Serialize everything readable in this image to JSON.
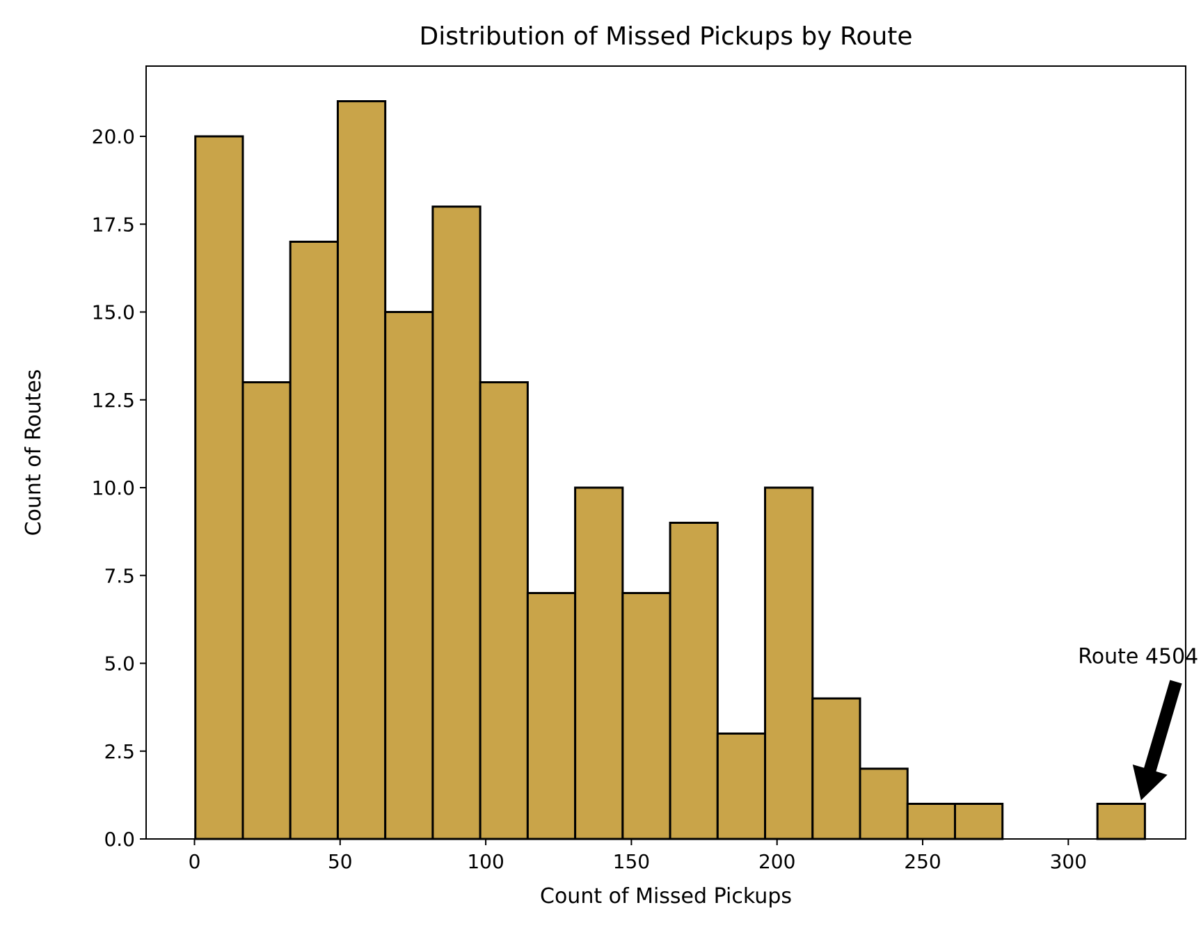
{
  "chart_data": {
    "type": "bar",
    "title": "Distribution of Missed Pickups by Route",
    "xlabel": "Count of Missed Pickups",
    "ylabel": "Count of Routes",
    "xlim": [
      -16.6,
      340.3
    ],
    "ylim": [
      0,
      22
    ],
    "xticks": [
      0,
      50,
      100,
      150,
      200,
      250,
      300
    ],
    "xtick_labels": [
      "0",
      "50",
      "100",
      "150",
      "200",
      "250",
      "300"
    ],
    "yticks": [
      0,
      2.5,
      5,
      7.5,
      10,
      12.5,
      15,
      17.5,
      20
    ],
    "ytick_labels": [
      "0.0",
      "2.5",
      "5.0",
      "7.5",
      "10.0",
      "12.5",
      "15.0",
      "17.5",
      "20.0"
    ],
    "bin_start": 0.3,
    "bin_width": 16.3,
    "values": [
      20,
      13,
      17,
      21,
      15,
      18,
      13,
      7,
      10,
      7,
      9,
      3,
      10,
      4,
      2,
      1,
      1,
      0,
      0,
      1
    ],
    "bar_color": "#c9a449",
    "edge_color": "#000000",
    "grid": false,
    "annotation": {
      "text": "Route 4504",
      "text_x": 324,
      "text_y": 5.0,
      "point_x": 324,
      "point_y": 1.1
    }
  }
}
